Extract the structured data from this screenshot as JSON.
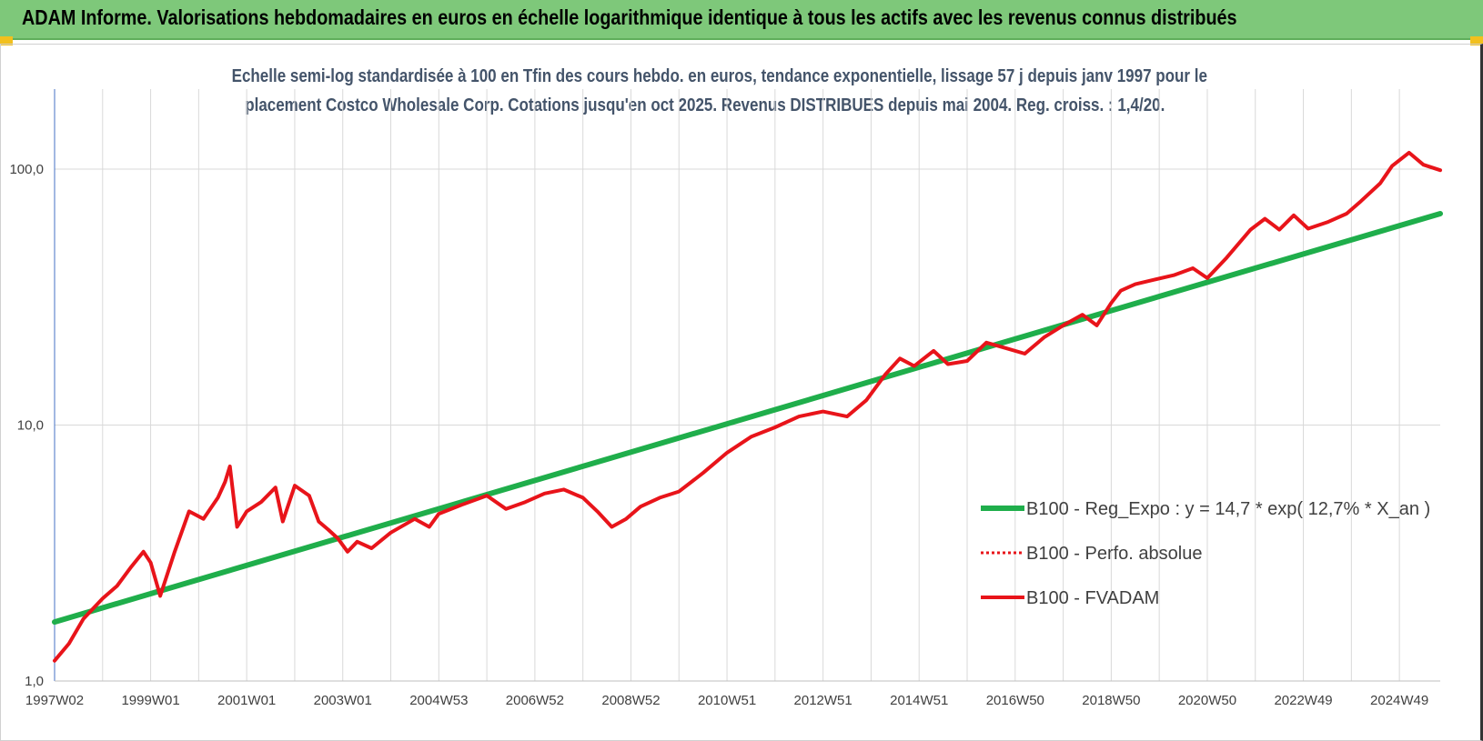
{
  "banner": {
    "title": "ADAM Informe. Valorisations hebdomadaires en euros en échelle logarithmique identique à tous les actifs avec les revenus connus distribués"
  },
  "colors": {
    "banner": "#7ec87a",
    "regression": "#1fae4b",
    "fvadam": "#e8141a",
    "grid": "#d9d9d9"
  },
  "chart_data": {
    "type": "line",
    "title_lines": [
      "Echelle semi-log standardisée à 100 en Tfin des cours hebdo. en euros, tendance exponentielle, lissage 57 j depuis janv 1997 pour le",
      "placement Costco Wholesale Corp. Cotations jusqu'en oct 2025. Revenus DISTRIBUES depuis mai 2004. Reg. croiss. : 1,4/20."
    ],
    "y_scale": "log",
    "ylim": [
      1,
      180
    ],
    "y_ticks": [
      1,
      10,
      100
    ],
    "y_tick_labels": [
      "1,0",
      "10,0",
      "100,0"
    ],
    "x_range": [
      1997.0,
      2025.85
    ],
    "x_ticks": [
      1997.0,
      1999.0,
      2001.0,
      2003.0,
      2005.0,
      2007.0,
      2009.0,
      2011.0,
      2013.0,
      2015.0,
      2017.0,
      2019.0,
      2021.0,
      2023.0,
      2025.0
    ],
    "x_tick_labels": [
      "1997W02",
      "1999W01",
      "2001W01",
      "2003W01",
      "2004W53",
      "2006W52",
      "2008W52",
      "2010W51",
      "2012W51",
      "2014W51",
      "2016W50",
      "2018W50",
      "2020W50",
      "2022W49",
      "2024W49"
    ],
    "legend_placement": "bottom-right",
    "series": [
      {
        "name": "B100 - Reg_Expo : y = 14,7 * exp( 12,7% *  X_an )",
        "style": "solid-thick",
        "color": "#1fae4b",
        "x": [
          1997.0,
          2025.85
        ],
        "y": [
          1.7,
          67
        ]
      },
      {
        "name": "B100 - Perfo. absolue",
        "style": "dotted",
        "color": "#e8141a",
        "x": [],
        "y": []
      },
      {
        "name": "B100 - FVADAM",
        "style": "solid",
        "color": "#e8141a",
        "x": [
          1997.0,
          1997.3,
          1997.6,
          1998.0,
          1998.3,
          1998.6,
          1998.85,
          1999.0,
          1999.2,
          1999.5,
          1999.8,
          2000.1,
          2000.4,
          2000.55,
          2000.65,
          2000.8,
          2001.0,
          2001.3,
          2001.6,
          2001.75,
          2002.0,
          2002.3,
          2002.5,
          2002.7,
          2002.9,
          2003.1,
          2003.3,
          2003.6,
          2004.0,
          2004.5,
          2004.8,
          2005.0,
          2005.5,
          2006.0,
          2006.4,
          2006.8,
          2007.2,
          2007.6,
          2008.0,
          2008.3,
          2008.6,
          2008.9,
          2009.2,
          2009.6,
          2010.0,
          2010.5,
          2011.0,
          2011.5,
          2012.0,
          2012.5,
          2013.0,
          2013.5,
          2013.9,
          2014.3,
          2014.6,
          2014.9,
          2015.3,
          2015.6,
          2016.0,
          2016.4,
          2016.8,
          2017.2,
          2017.6,
          2018.0,
          2018.4,
          2018.7,
          2019.0,
          2019.2,
          2019.5,
          2019.9,
          2020.3,
          2020.7,
          2021.0,
          2021.4,
          2021.9,
          2022.2,
          2022.5,
          2022.8,
          2023.1,
          2023.5,
          2023.9,
          2024.2,
          2024.6,
          2024.85,
          2025.2,
          2025.5,
          2025.85
        ],
        "y": [
          1.2,
          1.4,
          1.75,
          2.1,
          2.35,
          2.8,
          3.2,
          2.9,
          2.15,
          3.2,
          4.6,
          4.3,
          5.2,
          6.0,
          6.9,
          4.0,
          4.6,
          5.0,
          5.7,
          4.2,
          5.8,
          5.3,
          4.2,
          3.9,
          3.6,
          3.2,
          3.5,
          3.3,
          3.8,
          4.3,
          4.0,
          4.5,
          4.9,
          5.3,
          4.7,
          5.0,
          5.4,
          5.6,
          5.2,
          4.6,
          4.0,
          4.3,
          4.8,
          5.2,
          5.5,
          6.5,
          7.8,
          9.0,
          9.8,
          10.8,
          11.3,
          10.8,
          12.5,
          15.8,
          18.2,
          17.0,
          19.5,
          17.3,
          17.8,
          21.0,
          20.0,
          19.0,
          22.0,
          24.5,
          27.0,
          24.5,
          30.0,
          33.5,
          35.5,
          37.0,
          38.5,
          41.0,
          37.5,
          45.0,
          58.0,
          64.0,
          58.0,
          66.0,
          58.5,
          62.0,
          67.0,
          75.0,
          88.0,
          103.0,
          116.0,
          104.0,
          99.0
        ]
      }
    ]
  }
}
